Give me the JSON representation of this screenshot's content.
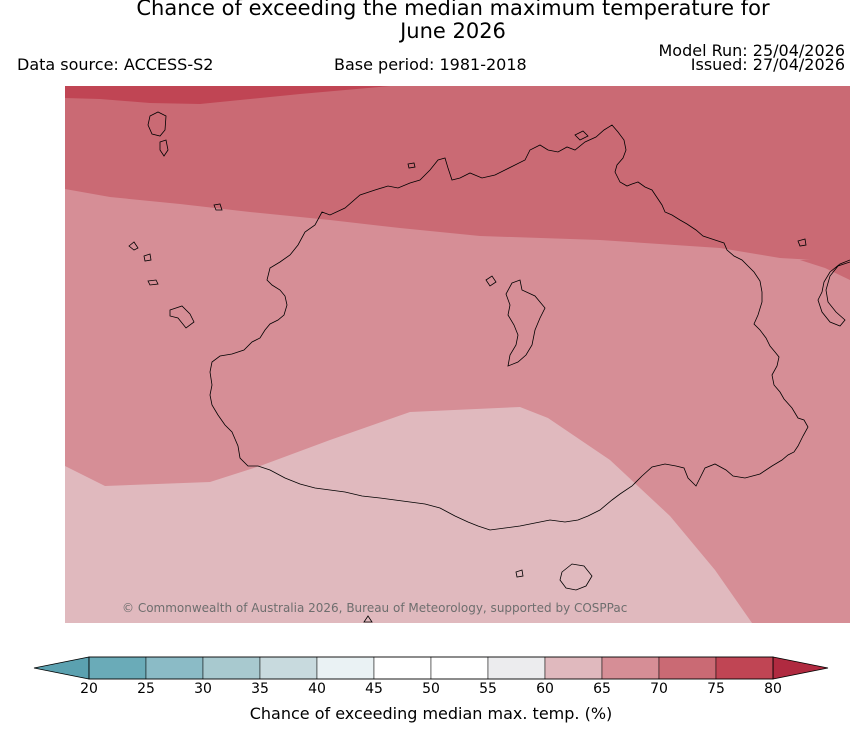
{
  "title_line1": "Chance of exceeding the median maximum temperature for",
  "title_line2": "June 2026",
  "data_source": "Data source: ACCESS-S2",
  "base_period": "Base period: 1981-2018",
  "model_run": "Model Run: 25/04/2026",
  "issued": "Issued: 27/04/2026",
  "copyright": "© Commonwealth of Australia 2026, Bureau of Meteorology, supported by COSPPac",
  "colorbar": {
    "label": "Chance of exceeding median max. temp. (%)",
    "ticks": [
      "20",
      "25",
      "30",
      "35",
      "40",
      "45",
      "50",
      "55",
      "60",
      "65",
      "70",
      "75",
      "80"
    ],
    "colors": [
      "#6aabb8",
      "#8bbbc6",
      "#a8c9cf",
      "#c8dade",
      "#eaf2f4",
      "#ffffff",
      "#ffffff",
      "#ececee",
      "#e0b9be",
      "#d68e96",
      "#ca6a74",
      "#c04554"
    ],
    "under_color": "#5ba1b0",
    "over_color": "#b02a40"
  },
  "legend_colors": {
    "band_75_80": "#c04554",
    "band_70_75": "#ca6a74",
    "band_65_70": "#d68e96",
    "band_60_65": "#e0b9be"
  }
}
